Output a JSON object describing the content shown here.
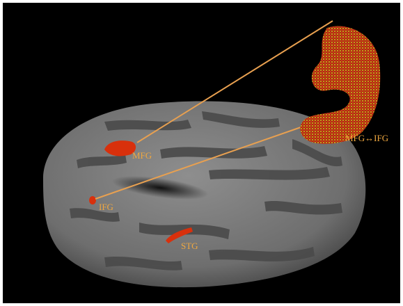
{
  "labels": {
    "mfg": "MFG",
    "ifg": "IFG",
    "stg": "STG",
    "tract": "MFG↔IFG"
  }
}
